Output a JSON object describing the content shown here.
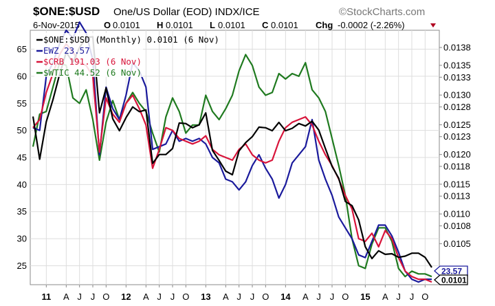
{
  "header": {
    "title": "$ONE:$USD",
    "subtitle": "One/US Dollar (EOD)  INDX/ICE",
    "brand": "©StockCharts.com",
    "date": "6-Nov-2015",
    "open_label": "O",
    "open": "0.0101",
    "high_label": "H",
    "high": "0.0101",
    "low_label": "L",
    "low": "0.0101",
    "close_label": "C",
    "close": "0.0101",
    "chg_label": "Chg",
    "chg": "-0.0002 (-2.26%)"
  },
  "colors": {
    "one_usd": "#000000",
    "ewz": "#1a1a9c",
    "crb": "#d8143a",
    "wtic": "#1f7a1f",
    "grid": "#dddddd",
    "chg_arrow": "#b00020"
  },
  "chart_data": {
    "type": "line",
    "x": [
      "2010-11",
      "2010-12",
      "2011-01",
      "2011-02",
      "2011-03",
      "2011-04",
      "2011-05",
      "2011-06",
      "2011-07",
      "2011-08",
      "2011-09",
      "2011-10",
      "2011-11",
      "2011-12",
      "2012-01",
      "2012-02",
      "2012-03",
      "2012-04",
      "2012-05",
      "2012-06",
      "2012-07",
      "2012-08",
      "2012-09",
      "2012-10",
      "2012-11",
      "2012-12",
      "2013-01",
      "2013-02",
      "2013-03",
      "2013-04",
      "2013-05",
      "2013-06",
      "2013-07",
      "2013-08",
      "2013-09",
      "2013-10",
      "2013-11",
      "2013-12",
      "2014-01",
      "2014-02",
      "2014-03",
      "2014-04",
      "2014-05",
      "2014-06",
      "2014-07",
      "2014-08",
      "2014-09",
      "2014-10",
      "2014-11",
      "2014-12",
      "2015-01",
      "2015-02",
      "2015-03",
      "2015-04",
      "2015-05",
      "2015-06",
      "2015-07",
      "2015-08",
      "2015-09",
      "2015-10",
      "2015-11"
    ],
    "x_tick_labels": [
      {
        "date": "2011-01",
        "label": "11",
        "bold": true
      },
      {
        "date": "2011-04",
        "label": "A",
        "bold": false
      },
      {
        "date": "2011-06",
        "label": "J",
        "bold": false
      },
      {
        "date": "2011-08",
        "label": "J",
        "bold": false
      },
      {
        "date": "2011-10",
        "label": "O",
        "bold": false
      },
      {
        "date": "2012-01",
        "label": "12",
        "bold": true
      },
      {
        "date": "2012-04",
        "label": "A",
        "bold": false
      },
      {
        "date": "2012-06",
        "label": "J",
        "bold": false
      },
      {
        "date": "2012-08",
        "label": "J",
        "bold": false
      },
      {
        "date": "2012-10",
        "label": "O",
        "bold": false
      },
      {
        "date": "2013-01",
        "label": "13",
        "bold": true
      },
      {
        "date": "2013-04",
        "label": "A",
        "bold": false
      },
      {
        "date": "2013-06",
        "label": "J",
        "bold": false
      },
      {
        "date": "2013-08",
        "label": "J",
        "bold": false
      },
      {
        "date": "2013-10",
        "label": "O",
        "bold": false
      },
      {
        "date": "2014-01",
        "label": "14",
        "bold": true
      },
      {
        "date": "2014-04",
        "label": "A",
        "bold": false
      },
      {
        "date": "2014-06",
        "label": "J",
        "bold": false
      },
      {
        "date": "2014-08",
        "label": "J",
        "bold": false
      },
      {
        "date": "2014-10",
        "label": "O",
        "bold": false
      },
      {
        "date": "2015-01",
        "label": "15",
        "bold": true
      },
      {
        "date": "2015-04",
        "label": "A",
        "bold": false
      },
      {
        "date": "2015-06",
        "label": "J",
        "bold": false
      },
      {
        "date": "2015-08",
        "label": "J",
        "bold": false
      },
      {
        "date": "2015-10",
        "label": "O",
        "bold": false
      }
    ],
    "y_left_ticks": [
      25,
      30,
      35,
      40,
      45,
      50,
      55,
      60,
      65
    ],
    "y_left_range": [
      21.5,
      68.5
    ],
    "y_right_ticks": [
      "0.0138",
      "0.0135",
      "0.0133",
      "0.0130",
      "0.0128",
      "0.0125",
      "0.0123",
      "0.0120",
      "0.0118",
      "0.0115",
      "0.0113",
      "0.0110",
      "0.0108",
      "0.0105"
    ],
    "y_right_range": [
      0.00981,
      0.01409
    ],
    "grid": true,
    "legend_position": "top-left",
    "series": [
      {
        "name": "$ONE:$USD (Monthly) 0.0101 (6 Nov)",
        "color_key": "one_usd",
        "axis": "right",
        "values": [
          0.01264,
          0.01192,
          0.01255,
          0.01292,
          0.01335,
          0.01372,
          0.01355,
          0.0138,
          0.01397,
          0.01398,
          0.0127,
          0.01312,
          0.0126,
          0.0124,
          0.01262,
          0.0128,
          0.01272,
          0.01275,
          0.01185,
          0.012,
          0.012,
          0.0121,
          0.01253,
          0.01252,
          0.01245,
          0.0125,
          0.0127,
          0.01207,
          0.0119,
          0.01172,
          0.01166,
          0.01206,
          0.0122,
          0.0123,
          0.01246,
          0.01245,
          0.0124,
          0.01254,
          0.0124,
          0.01244,
          0.01252,
          0.01248,
          0.01256,
          0.01241,
          0.0121,
          0.0118,
          0.0116,
          0.01121,
          0.01114,
          0.0109,
          0.01045,
          0.01025,
          0.01038,
          0.01032,
          0.01033,
          0.01027,
          0.01029,
          0.01034,
          0.01034,
          0.01027,
          0.0101
        ]
      },
      {
        "name": "EWZ 23.57",
        "color_key": "ewz",
        "axis": "left",
        "values": [
          50.5,
          50.0,
          60.0,
          62.5,
          66.0,
          68.5,
          67.0,
          70.0,
          68.0,
          63.0,
          45.5,
          58.0,
          54.0,
          52.0,
          56.5,
          62.5,
          61.0,
          58.0,
          46.5,
          47.0,
          47.5,
          50.0,
          48.0,
          48.5,
          48.0,
          48.5,
          47.5,
          45.0,
          44.0,
          41.0,
          40.5,
          39.0,
          40.5,
          43.5,
          45.5,
          43.0,
          41.0,
          37.5,
          40.0,
          44.0,
          45.5,
          47.0,
          52.0,
          44.5,
          41.0,
          38.0,
          34.0,
          32.0,
          30.0,
          27.0,
          26.5,
          29.5,
          32.5,
          32.5,
          30.5,
          27.5,
          24.0,
          22.5,
          22.0,
          22.5,
          22.5
        ]
      },
      {
        "name": "$CRB 191.03 (6 Nov)",
        "color_key": "crb",
        "axis": "left",
        "values": [
          50.5,
          52.0,
          57.0,
          60.5,
          64.0,
          66.0,
          64.5,
          62.5,
          62.0,
          60.0,
          46.0,
          56.0,
          53.0,
          51.5,
          55.0,
          56.5,
          54.0,
          51.0,
          43.0,
          46.5,
          50.5,
          50.0,
          48.5,
          48.0,
          47.5,
          48.0,
          49.0,
          46.5,
          45.5,
          45.0,
          44.5,
          46.5,
          47.5,
          45.5,
          44.5,
          44.0,
          44.5,
          48.0,
          50.5,
          51.5,
          52.0,
          52.5,
          51.0,
          48.0,
          45.5,
          43.5,
          41.0,
          38.0,
          35.5,
          30.0,
          29.5,
          31.0,
          28.5,
          31.5,
          30.0,
          26.5,
          24.0,
          23.0,
          22.5,
          22.5,
          22.0
        ]
      },
      {
        "name": "$WTIC 44.52 (6 Nov)",
        "color_key": "wtic",
        "axis": "left",
        "values": [
          47.0,
          53.0,
          53.5,
          58.0,
          62.5,
          62.0,
          56.0,
          55.0,
          57.5,
          52.0,
          44.5,
          51.5,
          55.5,
          52.0,
          55.0,
          57.0,
          55.0,
          53.5,
          49.5,
          46.0,
          52.5,
          56.0,
          53.5,
          49.5,
          51.0,
          51.0,
          56.5,
          53.5,
          52.0,
          54.0,
          56.5,
          61.0,
          64.0,
          62.0,
          58.0,
          56.5,
          57.0,
          60.5,
          59.5,
          60.5,
          60.0,
          62.5,
          57.5,
          56.0,
          53.5,
          48.5,
          43.5,
          38.0,
          30.0,
          25.0,
          24.5,
          29.0,
          32.0,
          32.0,
          29.5,
          24.5,
          23.0,
          24.0,
          23.5,
          23.5,
          23.0
        ]
      }
    ],
    "last_value_badges": [
      {
        "label": "23.57",
        "series": "EWZ 23.57"
      },
      {
        "label": "0.0101",
        "series": "$ONE:$USD (Monthly) 0.0101 (6 Nov)"
      }
    ]
  }
}
